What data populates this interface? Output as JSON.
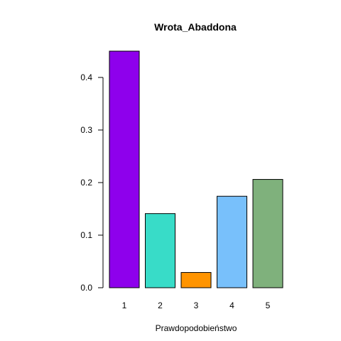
{
  "chart_data": {
    "type": "bar",
    "title": "Wrota_Abaddona",
    "xlabel": "Prawdopodobieństwo",
    "ylabel": "",
    "categories": [
      "1",
      "2",
      "3",
      "4",
      "5"
    ],
    "values": [
      0.45,
      0.141,
      0.029,
      0.174,
      0.206
    ],
    "colors": [
      "#8e00ec",
      "#38dcc8",
      "#ff9400",
      "#78c0fb",
      "#7fb17c"
    ],
    "yticks": [
      "0.0",
      "0.1",
      "0.2",
      "0.3",
      "0.4"
    ],
    "ylim": [
      0,
      0.45
    ],
    "grid": false,
    "legend": "none"
  }
}
